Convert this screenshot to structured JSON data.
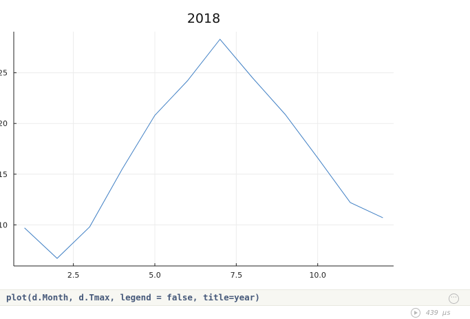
{
  "chart_data": {
    "type": "line",
    "title": "2018",
    "xlabel": "",
    "ylabel": "",
    "x": [
      1,
      2,
      3,
      4,
      5,
      6,
      7,
      8,
      9,
      10,
      11,
      12
    ],
    "y": [
      9.7,
      6.7,
      9.8,
      15.5,
      20.8,
      24.2,
      28.3,
      24.5,
      20.9,
      16.6,
      12.2,
      10.7
    ],
    "xticks": [
      "2.5",
      "5.0",
      "7.5",
      "10.0"
    ],
    "yticks": [
      "10",
      "15",
      "20",
      "25"
    ],
    "xlim": [
      0.67,
      12.33
    ],
    "ylim": [
      5.95,
      29.05
    ],
    "grid": true,
    "legend": false,
    "line_color": "#3f7fc4"
  },
  "cell": {
    "code": "plot(d.Month, d.Tmax, legend = false, title=year)",
    "runtime": "439 μs",
    "menu_label": "⋯"
  }
}
